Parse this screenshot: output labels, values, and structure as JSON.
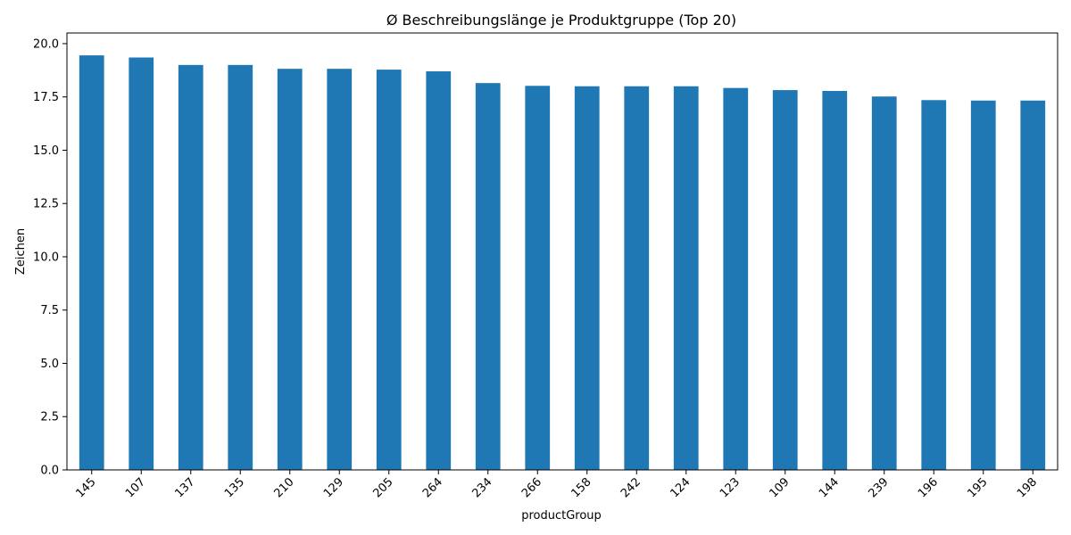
{
  "chart_data": {
    "type": "bar",
    "title": "Ø Beschreibungslänge je Produktgruppe (Top 20)",
    "xlabel": "productGroup",
    "ylabel": "Zeichen",
    "categories": [
      "145",
      "107",
      "137",
      "135",
      "210",
      "129",
      "205",
      "264",
      "234",
      "266",
      "158",
      "242",
      "124",
      "123",
      "109",
      "144",
      "239",
      "196",
      "195",
      "198"
    ],
    "values": [
      19.45,
      19.35,
      19.0,
      19.0,
      18.82,
      18.82,
      18.78,
      18.7,
      18.15,
      18.02,
      18.0,
      18.0,
      18.0,
      17.92,
      17.82,
      17.78,
      17.52,
      17.35,
      17.33,
      17.33
    ],
    "ylim": [
      0,
      20.5
    ],
    "yticks": [
      "0.0",
      "2.5",
      "5.0",
      "7.5",
      "10.0",
      "12.5",
      "15.0",
      "17.5",
      "20.0"
    ],
    "bar_color": "#1f77b4",
    "grid": false,
    "legend": "none"
  }
}
